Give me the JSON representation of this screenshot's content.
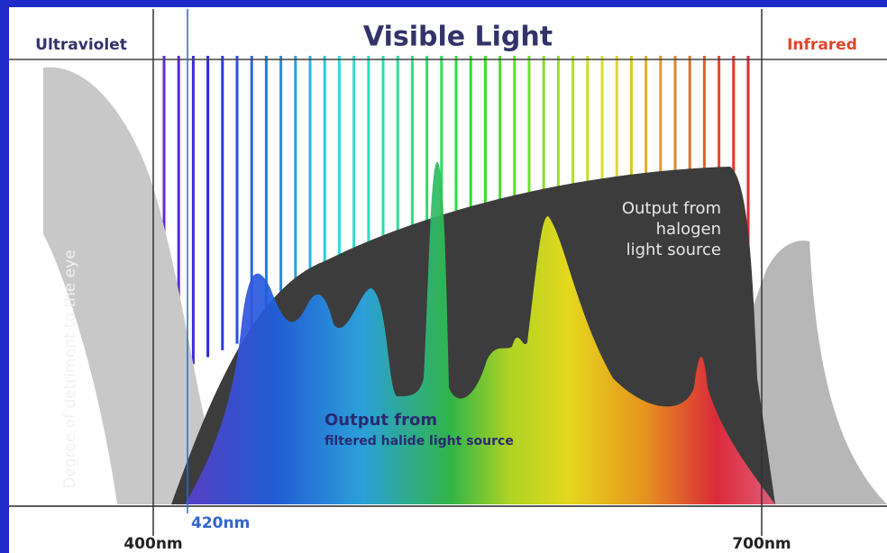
{
  "header": {
    "ultraviolet": "Ultraviolet",
    "title": "Visible Light",
    "infrared": "Infrared"
  },
  "axis_label": "Degree of detriment to the eye",
  "halogen": {
    "lines": [
      "Output from",
      "halogen",
      "light source"
    ]
  },
  "halide": {
    "lines": [
      "Output from",
      "filtered halide light source"
    ]
  },
  "markers": {
    "nm420": "420nm",
    "nm400": "400nm",
    "nm700": "700nm"
  }
}
